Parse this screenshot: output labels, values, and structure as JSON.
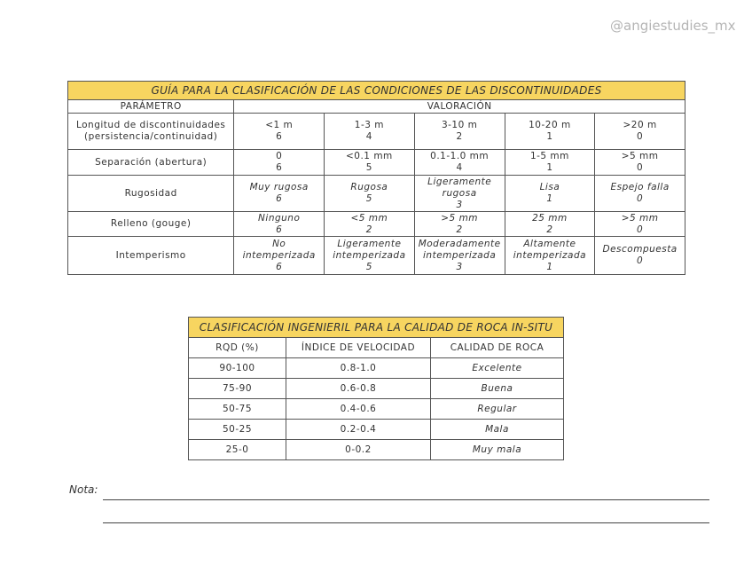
{
  "watermark": "@angiestudies_mx",
  "table1": {
    "title": "GUÍA PARA LA CLASIFICACIÓN DE LAS CONDICIONES DE LAS DISCONTINUIDADES",
    "header_param": "PARÁMETRO",
    "header_val": "VALORACIÓN",
    "rows": [
      {
        "param": [
          "Longitud de discontinuidades",
          "(persistencia/continuidad)"
        ],
        "cells": [
          [
            "<1 m",
            "6"
          ],
          [
            "1-3 m",
            "4"
          ],
          [
            "3-10 m",
            "2"
          ],
          [
            "10-20 m",
            "1"
          ],
          [
            ">20 m",
            "0"
          ]
        ]
      },
      {
        "param": [
          "Separación (abertura)"
        ],
        "cells": [
          [
            "0",
            "6"
          ],
          [
            "<0.1 mm",
            "5"
          ],
          [
            "0.1-1.0 mm",
            "4"
          ],
          [
            "1-5 mm",
            "1"
          ],
          [
            ">5 mm",
            "0"
          ]
        ]
      },
      {
        "param": [
          "Rugosidad"
        ],
        "cells": [
          [
            "Muy rugosa",
            "6"
          ],
          [
            "Rugosa",
            "5"
          ],
          [
            "Ligeramente",
            "rugosa",
            "3"
          ],
          [
            "Lisa",
            "1"
          ],
          [
            "Espejo falla",
            "0"
          ]
        ]
      },
      {
        "param": [
          "Relleno (gouge)"
        ],
        "cells": [
          [
            "Ninguno",
            "6"
          ],
          [
            "<5 mm",
            "2"
          ],
          [
            ">5 mm",
            "2"
          ],
          [
            "25 mm",
            "2"
          ],
          [
            ">5 mm",
            "0"
          ]
        ]
      },
      {
        "param": [
          "Intemperismo"
        ],
        "cells": [
          [
            "No",
            "intemperizada",
            "6"
          ],
          [
            "Ligeramente",
            "intemperizada",
            "5"
          ],
          [
            "Moderadamente",
            "intemperizada",
            "3"
          ],
          [
            "Altamente",
            "intemperizada",
            "1"
          ],
          [
            "Descompuesta",
            "0"
          ]
        ]
      }
    ]
  },
  "table2": {
    "title": "CLASIFICACIÓN INGENIERIL PARA LA CALIDAD DE ROCA IN-SITU",
    "headers": [
      "RQD (%)",
      "ÍNDICE DE VELOCIDAD",
      "CALIDAD DE ROCA"
    ],
    "rows": [
      [
        "90-100",
        "0.8-1.0",
        "Excelente"
      ],
      [
        "75-90",
        "0.6-0.8",
        "Buena"
      ],
      [
        "50-75",
        "0.4-0.6",
        "Regular"
      ],
      [
        "50-25",
        "0.2-0.4",
        "Mala"
      ],
      [
        "25-0",
        "0-0.2",
        "Muy mala"
      ]
    ]
  },
  "nota_label": "Nota:",
  "colors": {
    "title_bg": "#f7d560"
  }
}
